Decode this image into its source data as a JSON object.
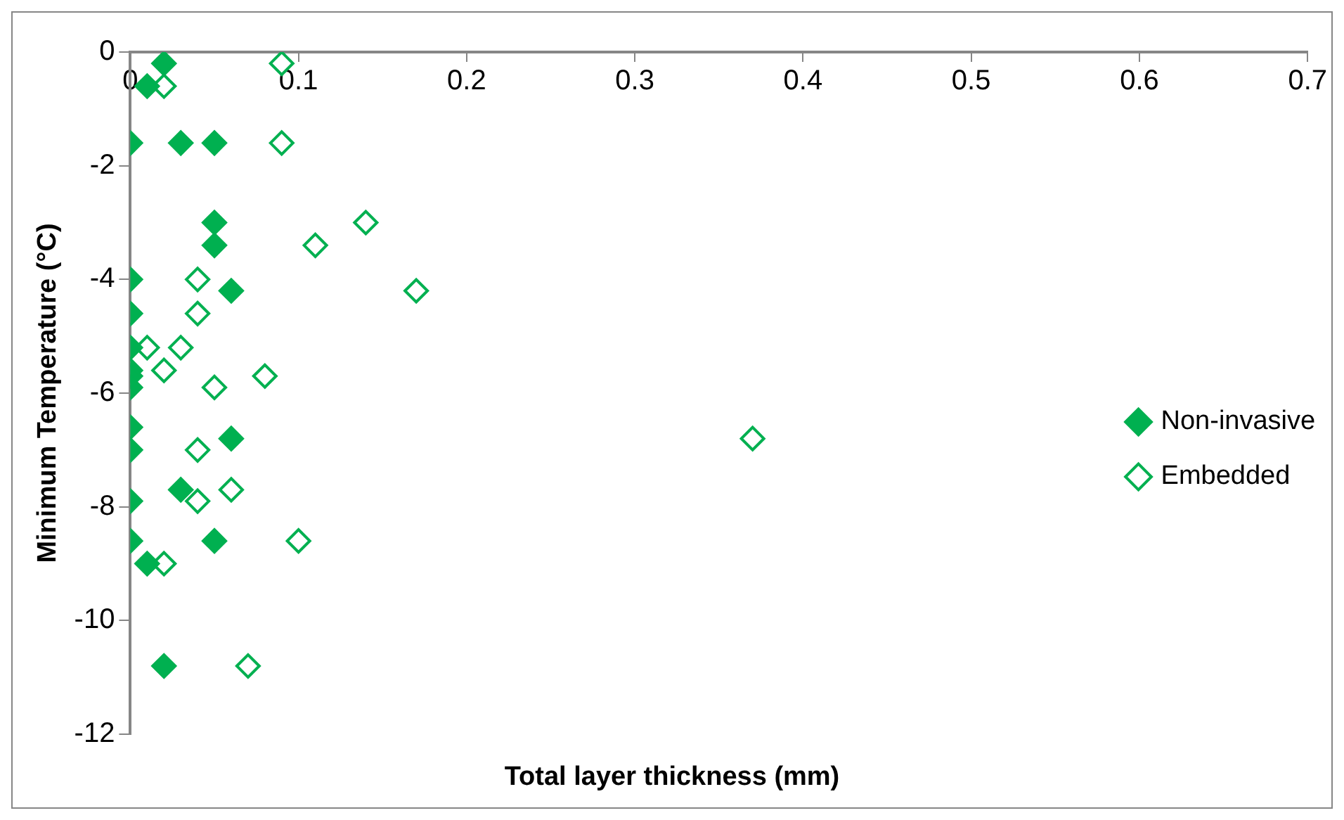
{
  "chart_data": {
    "type": "scatter",
    "xlabel": "Total layer thickness (mm)",
    "ylabel": "Minimum Temperature (°C)",
    "xlim": [
      0,
      0.7
    ],
    "xticks": [
      0,
      0.1,
      0.2,
      0.3,
      0.4,
      0.5,
      0.6,
      0.7
    ],
    "ylim": [
      -12,
      0
    ],
    "yticks": [
      -12,
      -10,
      -8,
      -6,
      -4,
      -2,
      0
    ],
    "grid": false,
    "legend": "right",
    "marker": "diamond",
    "series": [
      {
        "name": "Non-invasive",
        "color": "#00b050",
        "x": [
          0.02,
          0.01,
          0,
          0.03,
          0.05,
          0.05,
          0.05,
          0,
          0.06,
          0,
          0,
          0,
          0,
          0,
          0,
          0,
          0.06,
          0.03,
          0,
          0,
          0.05,
          0.01,
          0.02
        ],
        "values": [
          -0.2,
          -0.6,
          -1.6,
          -1.6,
          -1.6,
          -3.0,
          -3.4,
          -4.0,
          -4.2,
          -4.6,
          -5.2,
          -5.6,
          -5.7,
          -5.9,
          -6.6,
          -7.0,
          -6.8,
          -7.7,
          -7.9,
          -8.6,
          -8.6,
          -9.0,
          -10.8
        ]
      },
      {
        "name": "Embedded",
        "color": "#00b050",
        "x": [
          0.09,
          0.02,
          0.09,
          0.14,
          0.11,
          0.04,
          0.17,
          0.04,
          0.01,
          0.03,
          0.02,
          0.08,
          0.05,
          0.37,
          0.04,
          0.06,
          0.04,
          0.1,
          0.02,
          0.07
        ],
        "values": [
          -0.2,
          -0.6,
          -1.6,
          -3.0,
          -3.4,
          -4.0,
          -4.2,
          -4.6,
          -5.2,
          -5.2,
          -5.6,
          -5.7,
          -5.9,
          -6.8,
          -7.0,
          -7.7,
          -7.9,
          -8.6,
          -9.0,
          -10.8
        ]
      }
    ]
  }
}
